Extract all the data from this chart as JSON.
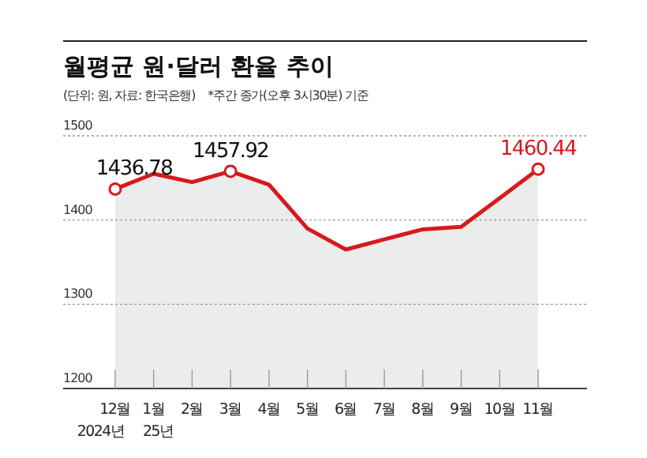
{
  "chart_data": {
    "type": "area",
    "title": "월평균 원·달러 환율 추이",
    "subtitle": "(단위: 원, 자료: 한국은행)",
    "annotations": [
      "*주간 종가(오후 3시30분) 기준"
    ],
    "categories": [
      "12월\n2024년",
      "1월\n25년",
      "2월",
      "3월",
      "4월",
      "5월",
      "6월",
      "7월",
      "8월",
      "9월",
      "10월",
      "11월"
    ],
    "series": [
      {
        "color": "#d7191f",
        "values": [
          1436.78,
          1455,
          1445,
          1457.92,
          1442,
          1390,
          1365,
          1377,
          1389,
          1392,
          1426,
          1460.44
        ],
        "value_labels": [
          "1436.78",
          null,
          null,
          "1457.92",
          null,
          null,
          null,
          null,
          null,
          null,
          null,
          "1460.44"
        ]
      }
    ],
    "ylim": [
      1200,
      1500
    ],
    "yticks": [
      1200,
      1300,
      1400,
      1500
    ],
    "grid": "y",
    "line_style": "solid"
  }
}
